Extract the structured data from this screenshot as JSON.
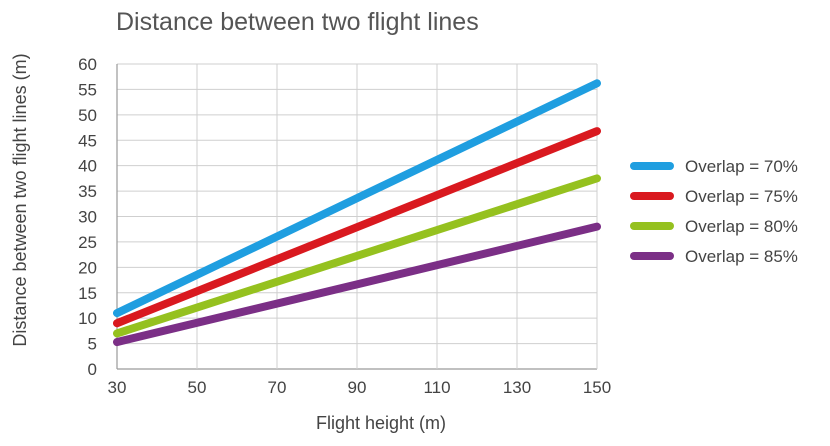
{
  "chart_data": {
    "type": "line",
    "title": "Distance between two flight lines",
    "xlabel": "Flight height (m)",
    "ylabel": "Distance between two flight lines (m)",
    "x": [
      30,
      150
    ],
    "xticks": [
      30,
      50,
      70,
      90,
      110,
      130,
      150
    ],
    "yticks": [
      0,
      5,
      10,
      15,
      20,
      25,
      30,
      35,
      40,
      45,
      50,
      55,
      60
    ],
    "xlim": [
      30,
      150
    ],
    "ylim": [
      0,
      60
    ],
    "grid": true,
    "legend_position": "right",
    "series": [
      {
        "name": "Overlap = 70%",
        "color": "#1f9ee0",
        "values": [
          11,
          56.2
        ]
      },
      {
        "name": "Overlap = 75%",
        "color": "#d9191f",
        "values": [
          9,
          46.8
        ]
      },
      {
        "name": "Overlap = 80%",
        "color": "#95c11f",
        "values": [
          7,
          37.5
        ]
      },
      {
        "name": "Overlap = 85%",
        "color": "#7b2f86",
        "values": [
          5.3,
          28
        ]
      }
    ]
  }
}
